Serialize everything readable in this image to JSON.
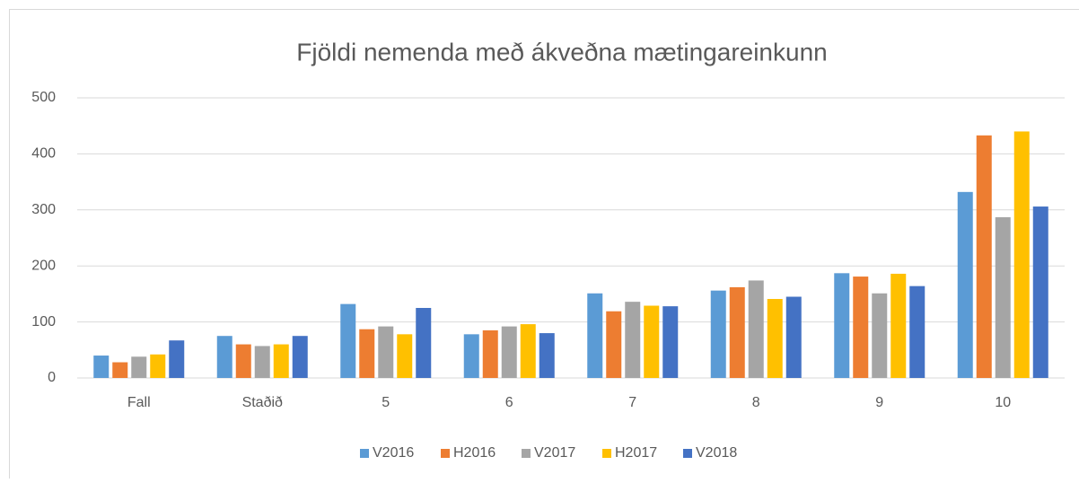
{
  "chart_data": {
    "type": "bar",
    "title": "Fjöldi nemenda með ákveðna mætingareinkunn",
    "categories": [
      "Fall",
      "Staðið",
      "5",
      "6",
      "7",
      "8",
      "9",
      "10"
    ],
    "series": [
      {
        "name": "V2016",
        "color": "#5b9bd5",
        "values": [
          40,
          75,
          132,
          78,
          151,
          156,
          187,
          332
        ]
      },
      {
        "name": "H2016",
        "color": "#ed7d31",
        "values": [
          28,
          60,
          87,
          85,
          119,
          162,
          181,
          433
        ]
      },
      {
        "name": "V2017",
        "color": "#a5a5a5",
        "values": [
          38,
          57,
          92,
          92,
          136,
          174,
          151,
          287
        ]
      },
      {
        "name": "H2017",
        "color": "#ffc000",
        "values": [
          42,
          60,
          78,
          96,
          129,
          141,
          186,
          440
        ]
      },
      {
        "name": "V2018",
        "color": "#4472c4",
        "values": [
          67,
          75,
          125,
          80,
          128,
          145,
          164,
          306
        ]
      }
    ],
    "ylim": [
      0,
      500
    ],
    "yticks": [
      0,
      100,
      200,
      300,
      400,
      500
    ],
    "grid": true,
    "legend": "bottom"
  }
}
